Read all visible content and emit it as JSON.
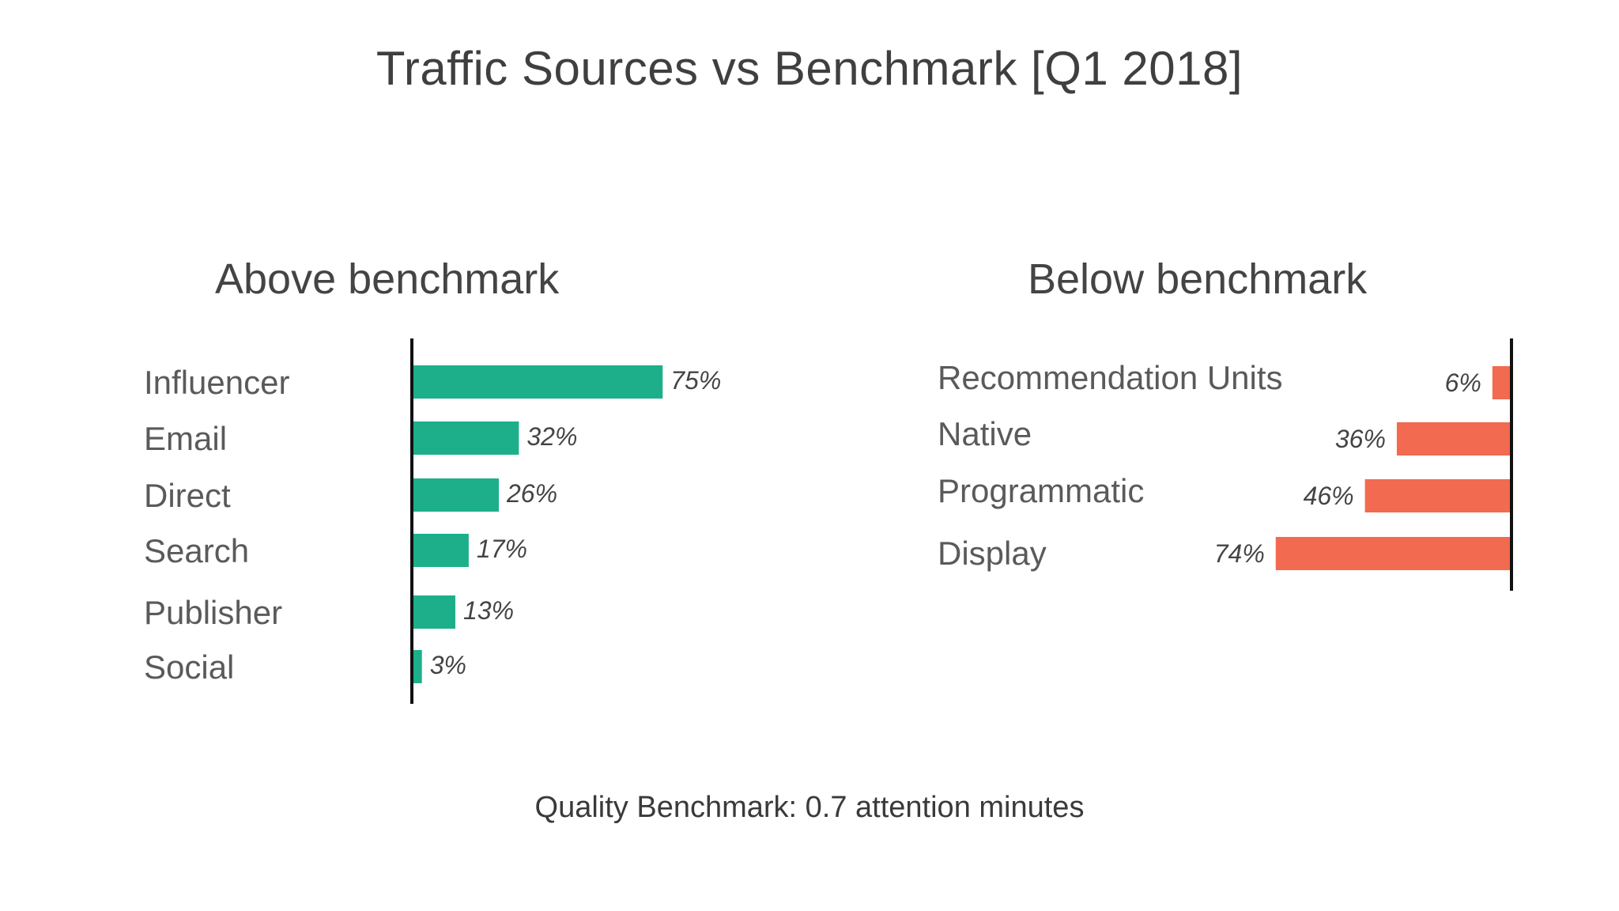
{
  "title": "Traffic Sources vs Benchmark [Q1 2018]",
  "footnote": "Quality Benchmark: 0.7 attention minutes",
  "colors": {
    "above": "#1caf8a",
    "below": "#f26a50",
    "axis": "#111111"
  },
  "chart_data": [
    {
      "type": "bar",
      "title": "Above benchmark",
      "orientation": "horizontal",
      "direction": "right",
      "categories": [
        "Influencer",
        "Email",
        "Direct",
        "Search",
        "Publisher",
        "Social"
      ],
      "values": [
        75,
        32,
        26,
        17,
        13,
        3
      ],
      "value_labels": [
        "75%",
        "32%",
        "26%",
        "17%",
        "13%",
        "3%"
      ],
      "xlim": [
        0,
        100
      ],
      "grid": false,
      "legend": "none"
    },
    {
      "type": "bar",
      "title": "Below benchmark",
      "orientation": "horizontal",
      "direction": "left",
      "categories": [
        "Recommendation Units",
        "Native",
        "Programmatic",
        "Display"
      ],
      "values": [
        6,
        36,
        46,
        74
      ],
      "value_labels": [
        "6%",
        "36%",
        "46%",
        "74%"
      ],
      "xlim": [
        0,
        100
      ],
      "grid": false,
      "legend": "none"
    }
  ]
}
